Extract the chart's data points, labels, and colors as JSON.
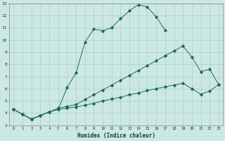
{
  "xlabel": "Humidex (Indice chaleur)",
  "ylabel": "",
  "xlim": [
    -0.5,
    23.5
  ],
  "ylim": [
    3,
    13
  ],
  "xticks": [
    0,
    1,
    2,
    3,
    4,
    5,
    6,
    7,
    8,
    9,
    10,
    11,
    12,
    13,
    14,
    15,
    16,
    17,
    18,
    19,
    20,
    21,
    22,
    23
  ],
  "yticks": [
    3,
    4,
    5,
    6,
    7,
    8,
    9,
    10,
    11,
    12,
    13
  ],
  "bg_color": "#cce8e4",
  "grid_color": "#aacccc",
  "line_color": "#1a6b5a",
  "line1_x": [
    0,
    1,
    2,
    3,
    4,
    5,
    6,
    7,
    8,
    9,
    10,
    11,
    12,
    13,
    14,
    15,
    16,
    17
  ],
  "line1_y": [
    4.3,
    3.9,
    3.5,
    3.8,
    4.1,
    4.3,
    6.1,
    7.3,
    9.8,
    10.9,
    10.75,
    11.0,
    11.75,
    12.4,
    12.9,
    12.7,
    11.9,
    10.8
  ],
  "line2_x": [
    0,
    1,
    2,
    3,
    4,
    5,
    6,
    7,
    8,
    9,
    10,
    11,
    12,
    13,
    14,
    15,
    16,
    17,
    18,
    19,
    20,
    21,
    22,
    23
  ],
  "line2_y": [
    4.3,
    3.9,
    3.5,
    3.8,
    4.1,
    4.4,
    4.55,
    4.7,
    5.1,
    5.5,
    5.9,
    6.3,
    6.7,
    7.1,
    7.5,
    7.9,
    8.3,
    8.7,
    9.1,
    9.5,
    8.6,
    7.4,
    7.6,
    6.35
  ],
  "line3_x": [
    0,
    1,
    2,
    3,
    4,
    5,
    6,
    7,
    8,
    9,
    10,
    11,
    12,
    13,
    14,
    15,
    16,
    17,
    18,
    19,
    20,
    21,
    22,
    23
  ],
  "line3_y": [
    4.3,
    3.9,
    3.5,
    3.8,
    4.1,
    4.3,
    4.4,
    4.5,
    4.65,
    4.8,
    5.0,
    5.15,
    5.3,
    5.5,
    5.65,
    5.85,
    6.0,
    6.15,
    6.3,
    6.45,
    6.0,
    5.55,
    5.8,
    6.35
  ],
  "figsize": [
    3.2,
    2.0
  ],
  "dpi": 100
}
